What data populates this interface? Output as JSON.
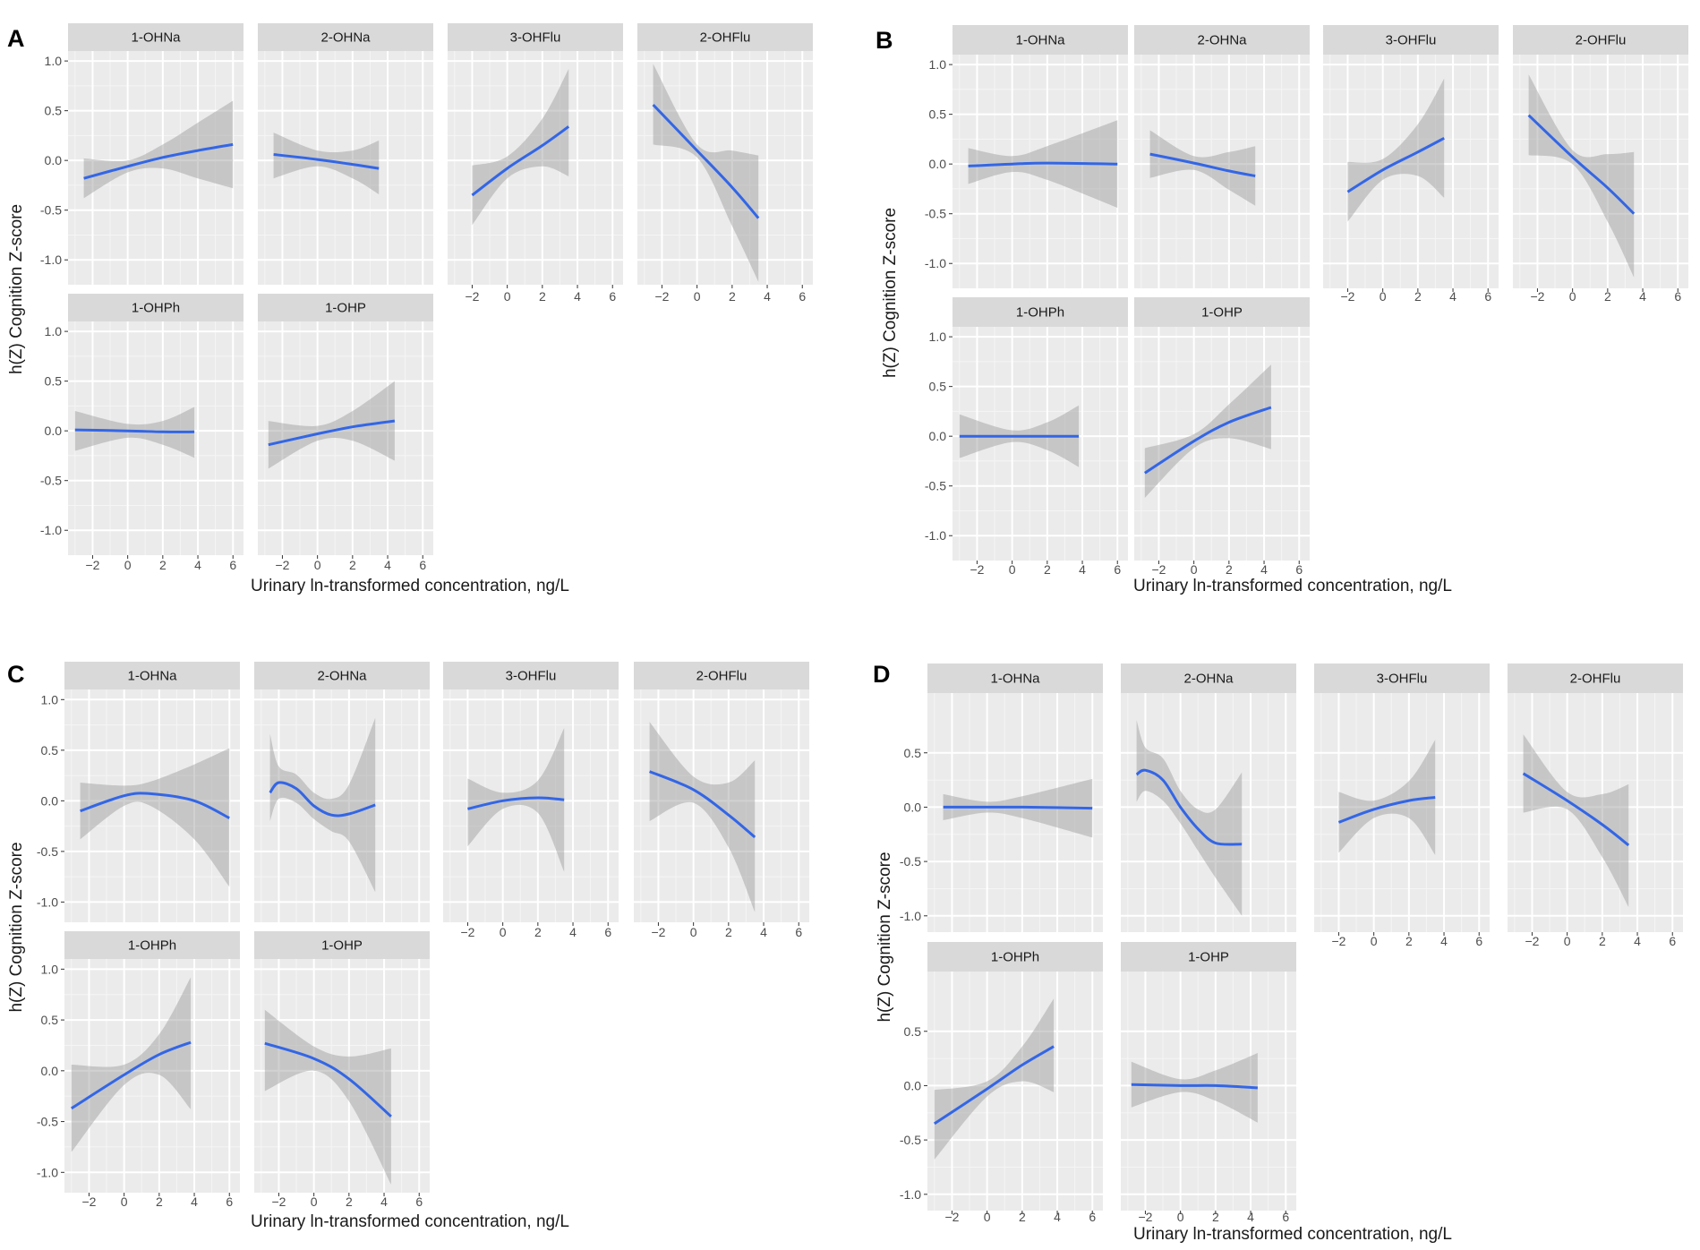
{
  "figure": {
    "xlabel": "Urinary ln-transformed concentration, ng/L",
    "ylabel": "h(Z) Cognition Z-score"
  },
  "colors": {
    "panel_bg": "#ebebeb",
    "strip_bg": "#d9d9d9",
    "grid_major": "#ffffff",
    "ribbon": "#999999",
    "line": "#3366e6"
  },
  "chart_data": [
    {
      "type": "line",
      "panel": "A",
      "ylim": [
        -1.25,
        1.1
      ],
      "yticks": [
        -1.0,
        -0.5,
        0.0,
        0.5,
        1.0
      ],
      "ytick_labels": [
        "-1.0",
        "-0.5",
        "0.0",
        "0.5",
        "1.0"
      ],
      "xlim": [
        -3.4,
        6.6
      ],
      "xticks": [
        -2,
        0,
        2,
        4,
        6
      ],
      "xtick_labels": [
        "-2",
        "0",
        "2",
        "4",
        "6"
      ],
      "series": [
        {
          "name": "1-OHNa",
          "x": [
            -2.5,
            0,
            2,
            4,
            6
          ],
          "y": [
            -0.18,
            -0.06,
            0.03,
            0.1,
            0.16
          ],
          "lo": [
            -0.38,
            -0.12,
            -0.08,
            -0.18,
            -0.28
          ],
          "hi": [
            0.02,
            0.0,
            0.16,
            0.38,
            0.6
          ]
        },
        {
          "name": "2-OHNa",
          "x": [
            -2.5,
            0,
            2,
            3.5
          ],
          "y": [
            0.06,
            0.01,
            -0.04,
            -0.08
          ],
          "lo": [
            -0.18,
            -0.06,
            -0.18,
            -0.34
          ],
          "hi": [
            0.28,
            0.1,
            0.1,
            0.2
          ]
        },
        {
          "name": "3-OHFlu",
          "x": [
            -2,
            0,
            2,
            3.5
          ],
          "y": [
            -0.35,
            -0.08,
            0.15,
            0.34
          ],
          "lo": [
            -0.65,
            -0.18,
            -0.06,
            -0.16
          ],
          "hi": [
            -0.05,
            0.04,
            0.42,
            0.92
          ]
        },
        {
          "name": "2-OHFlu",
          "x": [
            -2.5,
            0,
            2,
            3.5
          ],
          "y": [
            0.56,
            0.1,
            -0.27,
            -0.58
          ],
          "lo": [
            0.16,
            0.03,
            -0.66,
            -1.22
          ],
          "hi": [
            0.97,
            0.16,
            0.1,
            0.05
          ]
        },
        {
          "name": "1-OHPh",
          "x": [
            -3,
            0,
            2,
            3.8
          ],
          "y": [
            0.01,
            0.0,
            -0.01,
            -0.01
          ],
          "lo": [
            -0.2,
            -0.07,
            -0.14,
            -0.27
          ],
          "hi": [
            0.2,
            0.07,
            0.1,
            0.24
          ]
        },
        {
          "name": "1-OHP",
          "x": [
            -2.8,
            0,
            2,
            4.4
          ],
          "y": [
            -0.14,
            -0.03,
            0.04,
            0.1
          ],
          "lo": [
            -0.38,
            -0.1,
            -0.1,
            -0.3
          ],
          "hi": [
            0.1,
            0.05,
            0.2,
            0.5
          ]
        }
      ]
    },
    {
      "type": "line",
      "panel": "B",
      "ylim": [
        -1.25,
        1.1
      ],
      "yticks": [
        -1.0,
        -0.5,
        0.0,
        0.5,
        1.0
      ],
      "ytick_labels": [
        "-1.0",
        "-0.5",
        "0.0",
        "0.5",
        "1.0"
      ],
      "xlim": [
        -3.4,
        6.6
      ],
      "xticks": [
        -2,
        0,
        2,
        4,
        6
      ],
      "xtick_labels": [
        "-2",
        "0",
        "2",
        "4",
        "6"
      ],
      "series": [
        {
          "name": "1-OHNa",
          "x": [
            -2.5,
            0,
            2,
            6
          ],
          "y": [
            -0.02,
            0.0,
            0.01,
            0.0
          ],
          "lo": [
            -0.2,
            -0.08,
            -0.16,
            -0.44
          ],
          "hi": [
            0.16,
            0.08,
            0.18,
            0.44
          ]
        },
        {
          "name": "2-OHNa",
          "x": [
            -2.5,
            0,
            2,
            3.5
          ],
          "y": [
            0.1,
            0.01,
            -0.07,
            -0.12
          ],
          "lo": [
            -0.14,
            -0.06,
            -0.26,
            -0.42
          ],
          "hi": [
            0.34,
            0.08,
            0.12,
            0.18
          ]
        },
        {
          "name": "3-OHFlu",
          "x": [
            -2,
            0,
            2,
            3.5
          ],
          "y": [
            -0.28,
            -0.06,
            0.12,
            0.26
          ],
          "lo": [
            -0.58,
            -0.16,
            -0.12,
            -0.34
          ],
          "hi": [
            0.02,
            0.05,
            0.4,
            0.86
          ]
        },
        {
          "name": "2-OHFlu",
          "x": [
            -2.5,
            0,
            2,
            3.5
          ],
          "y": [
            0.49,
            0.07,
            -0.24,
            -0.5
          ],
          "lo": [
            0.09,
            0.0,
            -0.58,
            -1.14
          ],
          "hi": [
            0.9,
            0.14,
            0.1,
            0.12
          ]
        },
        {
          "name": "1-OHPh",
          "x": [
            -3,
            0,
            2,
            3.8
          ],
          "y": [
            0.0,
            0.0,
            0.0,
            0.0
          ],
          "lo": [
            -0.22,
            -0.06,
            -0.14,
            -0.31
          ],
          "hi": [
            0.22,
            0.06,
            0.14,
            0.31
          ]
        },
        {
          "name": "1-OHP",
          "x": [
            -2.8,
            0,
            2,
            4.4
          ],
          "y": [
            -0.37,
            -0.05,
            0.14,
            0.29
          ],
          "lo": [
            -0.62,
            -0.12,
            -0.02,
            -0.13
          ],
          "hi": [
            -0.12,
            0.02,
            0.32,
            0.72
          ]
        }
      ]
    },
    {
      "type": "line",
      "panel": "C",
      "ylim": [
        -1.2,
        1.1
      ],
      "yticks": [
        -1.0,
        -0.5,
        0.0,
        0.5,
        1.0
      ],
      "ytick_labels": [
        "-1.0",
        "-0.5",
        "0.0",
        "0.5",
        "1.0"
      ],
      "xlim": [
        -3.4,
        6.6
      ],
      "xticks": [
        -2,
        0,
        2,
        4,
        6
      ],
      "xtick_labels": [
        "-2",
        "0",
        "2",
        "4",
        "6"
      ],
      "series": [
        {
          "name": "1-OHNa",
          "x": [
            -2.5,
            0,
            1.5,
            4,
            6
          ],
          "y": [
            -0.1,
            0.05,
            0.07,
            0.0,
            -0.17
          ],
          "lo": [
            -0.38,
            -0.05,
            -0.05,
            -0.38,
            -0.85
          ],
          "hi": [
            0.18,
            0.15,
            0.19,
            0.36,
            0.52
          ]
        },
        {
          "name": "2-OHNa",
          "x": [
            -2.5,
            -2,
            -1,
            0,
            1,
            2,
            3.5
          ],
          "y": [
            0.08,
            0.18,
            0.12,
            -0.05,
            -0.14,
            -0.13,
            -0.04
          ],
          "lo": [
            -0.2,
            0.02,
            -0.02,
            -0.18,
            -0.3,
            -0.4,
            -0.9
          ],
          "hi": [
            0.66,
            0.34,
            0.26,
            0.08,
            0.02,
            0.16,
            0.82
          ]
        },
        {
          "name": "3-OHFlu",
          "x": [
            -2,
            0,
            2,
            3.5
          ],
          "y": [
            -0.08,
            0.0,
            0.03,
            0.01
          ],
          "lo": [
            -0.45,
            -0.08,
            -0.12,
            -0.7
          ],
          "hi": [
            0.22,
            0.08,
            0.2,
            0.72
          ]
        },
        {
          "name": "2-OHFlu",
          "x": [
            -2.5,
            0,
            2,
            3.5
          ],
          "y": [
            0.29,
            0.11,
            -0.14,
            -0.36
          ],
          "lo": [
            -0.2,
            -0.02,
            -0.46,
            -1.1
          ],
          "hi": [
            0.78,
            0.24,
            0.18,
            0.4
          ]
        },
        {
          "name": "1-OHPh",
          "x": [
            -3,
            0,
            2,
            3.8
          ],
          "y": [
            -0.37,
            -0.04,
            0.16,
            0.28
          ],
          "lo": [
            -0.8,
            -0.14,
            -0.04,
            -0.38
          ],
          "hi": [
            0.06,
            0.06,
            0.36,
            0.92
          ]
        },
        {
          "name": "1-OHP",
          "x": [
            -2.8,
            0,
            2,
            4.4
          ],
          "y": [
            0.27,
            0.12,
            -0.08,
            -0.45
          ],
          "lo": [
            -0.2,
            0.0,
            -0.3,
            -1.12
          ],
          "hi": [
            0.6,
            0.24,
            0.14,
            0.22
          ]
        }
      ]
    },
    {
      "type": "line",
      "panel": "D",
      "ylim": [
        -1.15,
        1.05
      ],
      "yticks": [
        -1.0,
        -0.5,
        0.0,
        0.5
      ],
      "ytick_labels": [
        "-1.0",
        "-0.5",
        "0.0",
        "0.5"
      ],
      "xlim": [
        -3.4,
        6.6
      ],
      "xticks": [
        -2,
        0,
        2,
        4,
        6
      ],
      "xtick_labels": [
        "-2",
        "0",
        "2",
        "4",
        "6"
      ],
      "series": [
        {
          "name": "1-OHNa",
          "x": [
            -2.5,
            0,
            2,
            6
          ],
          "y": [
            0.0,
            0.0,
            0.0,
            -0.01
          ],
          "lo": [
            -0.12,
            -0.05,
            -0.1,
            -0.28
          ],
          "hi": [
            0.12,
            0.05,
            0.1,
            0.26
          ]
        },
        {
          "name": "2-OHNa",
          "x": [
            -2.5,
            -2,
            -1,
            0,
            1,
            2,
            3.5
          ],
          "y": [
            0.3,
            0.34,
            0.25,
            0.0,
            -0.2,
            -0.33,
            -0.34
          ],
          "lo": [
            0.05,
            0.15,
            0.06,
            -0.15,
            -0.4,
            -0.65,
            -1.0
          ],
          "hi": [
            0.8,
            0.55,
            0.45,
            0.15,
            -0.02,
            -0.02,
            0.32
          ]
        },
        {
          "name": "3-OHFlu",
          "x": [
            -2,
            0,
            2,
            3.5
          ],
          "y": [
            -0.14,
            -0.02,
            0.06,
            0.09
          ],
          "lo": [
            -0.42,
            -0.1,
            -0.1,
            -0.44
          ],
          "hi": [
            0.14,
            0.06,
            0.24,
            0.62
          ]
        },
        {
          "name": "2-OHFlu",
          "x": [
            -2.5,
            0,
            2,
            3.5
          ],
          "y": [
            0.31,
            0.06,
            -0.16,
            -0.35
          ],
          "lo": [
            -0.05,
            -0.02,
            -0.46,
            -0.92
          ],
          "hi": [
            0.67,
            0.14,
            0.12,
            0.21
          ]
        },
        {
          "name": "1-OHPh",
          "x": [
            -3,
            0,
            2,
            3.8
          ],
          "y": [
            -0.35,
            -0.03,
            0.19,
            0.36
          ],
          "lo": [
            -0.68,
            -0.1,
            0.04,
            -0.06
          ],
          "hi": [
            -0.04,
            0.04,
            0.36,
            0.8
          ]
        },
        {
          "name": "1-OHP",
          "x": [
            -2.8,
            0,
            2,
            4.4
          ],
          "y": [
            0.01,
            0.0,
            0.0,
            -0.02
          ],
          "lo": [
            -0.2,
            -0.06,
            -0.14,
            -0.34
          ],
          "hi": [
            0.22,
            0.06,
            0.14,
            0.3
          ]
        }
      ]
    }
  ]
}
